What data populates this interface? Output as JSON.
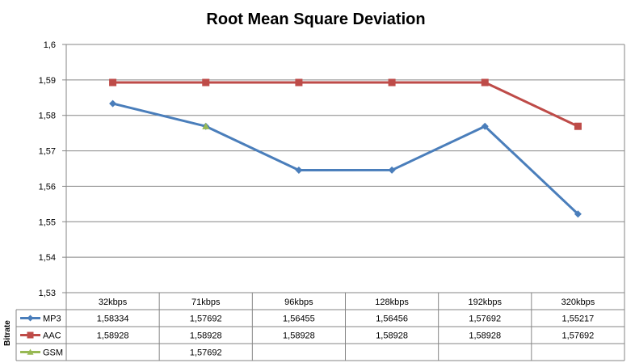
{
  "chart_data": {
    "type": "line",
    "title": "Root Mean Square Deviation",
    "xlabel": "Bitrate",
    "ylabel": "",
    "ylim": [
      1.53,
      1.6
    ],
    "ytick_labels": [
      "1,53",
      "1,54",
      "1,55",
      "1,56",
      "1,57",
      "1,58",
      "1,59",
      "1,6"
    ],
    "grid": true,
    "legend": "data-table",
    "categories": [
      "32kbps",
      "71kbps",
      "96kbps",
      "128kbps",
      "192kbps",
      "320kbps"
    ],
    "series": [
      {
        "name": "MP3",
        "color": "#4a7ebb",
        "marker": "diamond",
        "values": [
          1.58334,
          1.57692,
          1.56455,
          1.56456,
          1.57692,
          1.55217
        ],
        "labels": [
          "1,58334",
          "1,57692",
          "1,56455",
          "1,56456",
          "1,57692",
          "1,55217"
        ]
      },
      {
        "name": "AAC",
        "color": "#be4b48",
        "marker": "square",
        "values": [
          1.58928,
          1.58928,
          1.58928,
          1.58928,
          1.58928,
          1.57692
        ],
        "labels": [
          "1,58928",
          "1,58928",
          "1,58928",
          "1,58928",
          "1,58928",
          "1,57692"
        ]
      },
      {
        "name": "GSM",
        "color": "#98b954",
        "marker": "triangle",
        "values": [
          null,
          1.57692,
          null,
          null,
          null,
          null
        ],
        "labels": [
          "",
          "1,57692",
          "",
          "",
          "",
          ""
        ]
      }
    ]
  }
}
